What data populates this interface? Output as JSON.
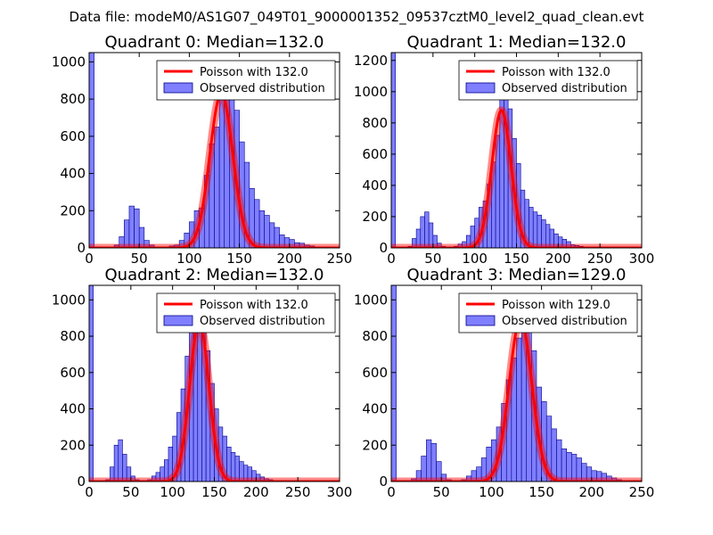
{
  "suptitle": "Data file: modeM0/AS1G07_049T01_9000001352_09537cztM0_level2_quad_clean.evt",
  "colors": {
    "hist_fill": "#7f7fff",
    "hist_edge": "#00008b",
    "poisson": "#ff0000"
  },
  "chart_data": [
    {
      "type": "bar",
      "title": "Quadrant 0: Median=132.0",
      "xlim": [
        0,
        250
      ],
      "ylim": [
        0,
        1050
      ],
      "xticks": [
        "0",
        "50",
        "100",
        "150",
        "200",
        "250"
      ],
      "yticks": [
        "0",
        "200",
        "400",
        "600",
        "800",
        "1000"
      ],
      "bin_width": 5,
      "bin_starts": [
        0,
        20,
        25,
        30,
        35,
        40,
        45,
        50,
        55,
        60,
        65,
        70,
        75,
        80,
        85,
        90,
        95,
        100,
        105,
        110,
        115,
        120,
        125,
        130,
        135,
        140,
        145,
        150,
        155,
        160,
        165,
        170,
        175,
        180,
        185,
        190,
        195,
        200,
        205,
        210,
        215,
        220,
        225,
        230
      ],
      "counts": [
        1050,
        5,
        15,
        60,
        150,
        225,
        210,
        110,
        40,
        15,
        5,
        3,
        3,
        10,
        15,
        40,
        80,
        140,
        200,
        215,
        390,
        560,
        650,
        910,
        860,
        830,
        740,
        570,
        460,
        320,
        260,
        200,
        175,
        135,
        110,
        70,
        55,
        45,
        28,
        25,
        15,
        10,
        5,
        5
      ],
      "curve_label": "Poisson with 132.0",
      "mu": 132.0,
      "curve_peak": 830,
      "legend": [
        "Poisson with 132.0",
        "Observed distribution"
      ],
      "legend_loc": "upper right"
    },
    {
      "type": "bar",
      "title": "Quadrant 1: Median=132.0",
      "xlim": [
        0,
        300
      ],
      "ylim": [
        0,
        1250
      ],
      "xticks": [
        "0",
        "50",
        "100",
        "150",
        "200",
        "250",
        "300"
      ],
      "yticks": [
        "0",
        "200",
        "400",
        "600",
        "800",
        "1000",
        "1200"
      ],
      "bin_width": 5,
      "bin_starts": [
        0,
        20,
        25,
        30,
        35,
        40,
        45,
        50,
        55,
        60,
        65,
        70,
        75,
        80,
        85,
        90,
        95,
        100,
        105,
        110,
        115,
        120,
        125,
        130,
        135,
        140,
        145,
        150,
        155,
        160,
        165,
        170,
        175,
        180,
        185,
        190,
        195,
        200,
        205,
        210,
        215,
        220,
        225,
        230,
        235
      ],
      "counts": [
        1250,
        10,
        60,
        120,
        200,
        230,
        160,
        80,
        30,
        10,
        5,
        5,
        10,
        25,
        40,
        80,
        140,
        190,
        260,
        300,
        410,
        550,
        720,
        970,
        1010,
        890,
        700,
        540,
        370,
        310,
        260,
        230,
        210,
        180,
        150,
        120,
        90,
        70,
        55,
        40,
        20,
        15,
        10,
        5,
        3
      ],
      "curve_label": "Poisson with 132.0",
      "mu": 132.0,
      "curve_peak": 880,
      "legend": [
        "Poisson with 132.0",
        "Observed distribution"
      ],
      "legend_loc": "upper right"
    },
    {
      "type": "bar",
      "title": "Quadrant 2: Median=132.0",
      "xlim": [
        0,
        300
      ],
      "ylim": [
        0,
        1080
      ],
      "xticks": [
        "0",
        "50",
        "100",
        "150",
        "200",
        "250",
        "300"
      ],
      "yticks": [
        "0",
        "200",
        "400",
        "600",
        "800",
        "1000"
      ],
      "bin_width": 5,
      "bin_starts": [
        0,
        20,
        25,
        30,
        35,
        40,
        45,
        50,
        55,
        60,
        65,
        70,
        75,
        80,
        85,
        90,
        95,
        100,
        105,
        110,
        115,
        120,
        125,
        130,
        135,
        140,
        145,
        150,
        155,
        160,
        165,
        170,
        175,
        180,
        185,
        190,
        195,
        200,
        205,
        210,
        215,
        220,
        225,
        230,
        235
      ],
      "counts": [
        1080,
        10,
        80,
        200,
        230,
        150,
        80,
        30,
        10,
        5,
        5,
        10,
        30,
        50,
        80,
        120,
        190,
        250,
        380,
        510,
        690,
        860,
        1020,
        980,
        900,
        720,
        540,
        400,
        300,
        250,
        190,
        160,
        140,
        110,
        90,
        80,
        60,
        40,
        25,
        15,
        10,
        5,
        5,
        3,
        2
      ],
      "curve_label": "Poisson with 132.0",
      "mu": 132.0,
      "curve_peak": 880,
      "legend": [
        "Poisson with 132.0",
        "Observed distribution"
      ],
      "legend_loc": "upper right"
    },
    {
      "type": "bar",
      "title": "Quadrant 3: Median=129.0",
      "xlim": [
        0,
        250
      ],
      "ylim": [
        0,
        1080
      ],
      "xticks": [
        "0",
        "50",
        "100",
        "150",
        "200",
        "250"
      ],
      "yticks": [
        "0",
        "200",
        "400",
        "600",
        "800",
        "1000"
      ],
      "bin_width": 5,
      "bin_starts": [
        0,
        20,
        25,
        30,
        35,
        40,
        45,
        50,
        55,
        60,
        65,
        70,
        75,
        80,
        85,
        90,
        95,
        100,
        105,
        110,
        115,
        120,
        125,
        130,
        135,
        140,
        145,
        150,
        155,
        160,
        165,
        170,
        175,
        180,
        185,
        190,
        195,
        200,
        205,
        210,
        215,
        220,
        225,
        230,
        235,
        240
      ],
      "counts": [
        1080,
        15,
        60,
        140,
        230,
        210,
        110,
        40,
        10,
        5,
        5,
        10,
        30,
        60,
        80,
        130,
        190,
        230,
        300,
        430,
        560,
        680,
        790,
        1010,
        980,
        720,
        520,
        440,
        360,
        290,
        230,
        180,
        160,
        150,
        130,
        100,
        80,
        60,
        55,
        45,
        30,
        20,
        10,
        5,
        5,
        3
      ],
      "curve_label": "Poisson with 129.0",
      "mu": 129.0,
      "curve_peak": 890,
      "legend": [
        "Poisson with 129.0",
        "Observed distribution"
      ],
      "legend_loc": "upper right"
    }
  ]
}
